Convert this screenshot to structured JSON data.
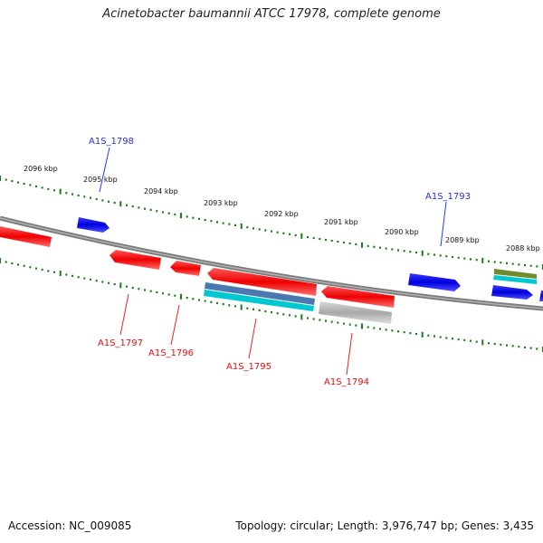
{
  "title": "Acinetobacter baumannii ATCC 17978, complete genome",
  "footer": {
    "accession_text": "Accession: NC_009085",
    "summary_text": "Topology: circular; Length: 3,976,747 bp; Genes: 3,435"
  },
  "scale_labels": [
    "2096 kbp",
    "2095 kbp",
    "2094 kbp",
    "2093 kbp",
    "2092 kbp",
    "2091 kbp",
    "2090 kbp",
    "2089 kbp",
    "2088 kbp"
  ],
  "gene_labels": {
    "top": [
      "A1S_1798",
      "A1S_1793"
    ],
    "bottom": [
      "A1S_1797",
      "A1S_1796",
      "A1S_1795",
      "A1S_1794"
    ]
  },
  "colors": {
    "forward_strand": "#0000ee",
    "reverse_strand": "#ee0000",
    "ruler": "#1a7a1a",
    "backbone": "#888888",
    "feature_cyan": "#00c8d0",
    "feature_steel": "#4a78b0",
    "feature_gray": "#b8b8b8",
    "feature_olive": "#6e8c2a"
  }
}
